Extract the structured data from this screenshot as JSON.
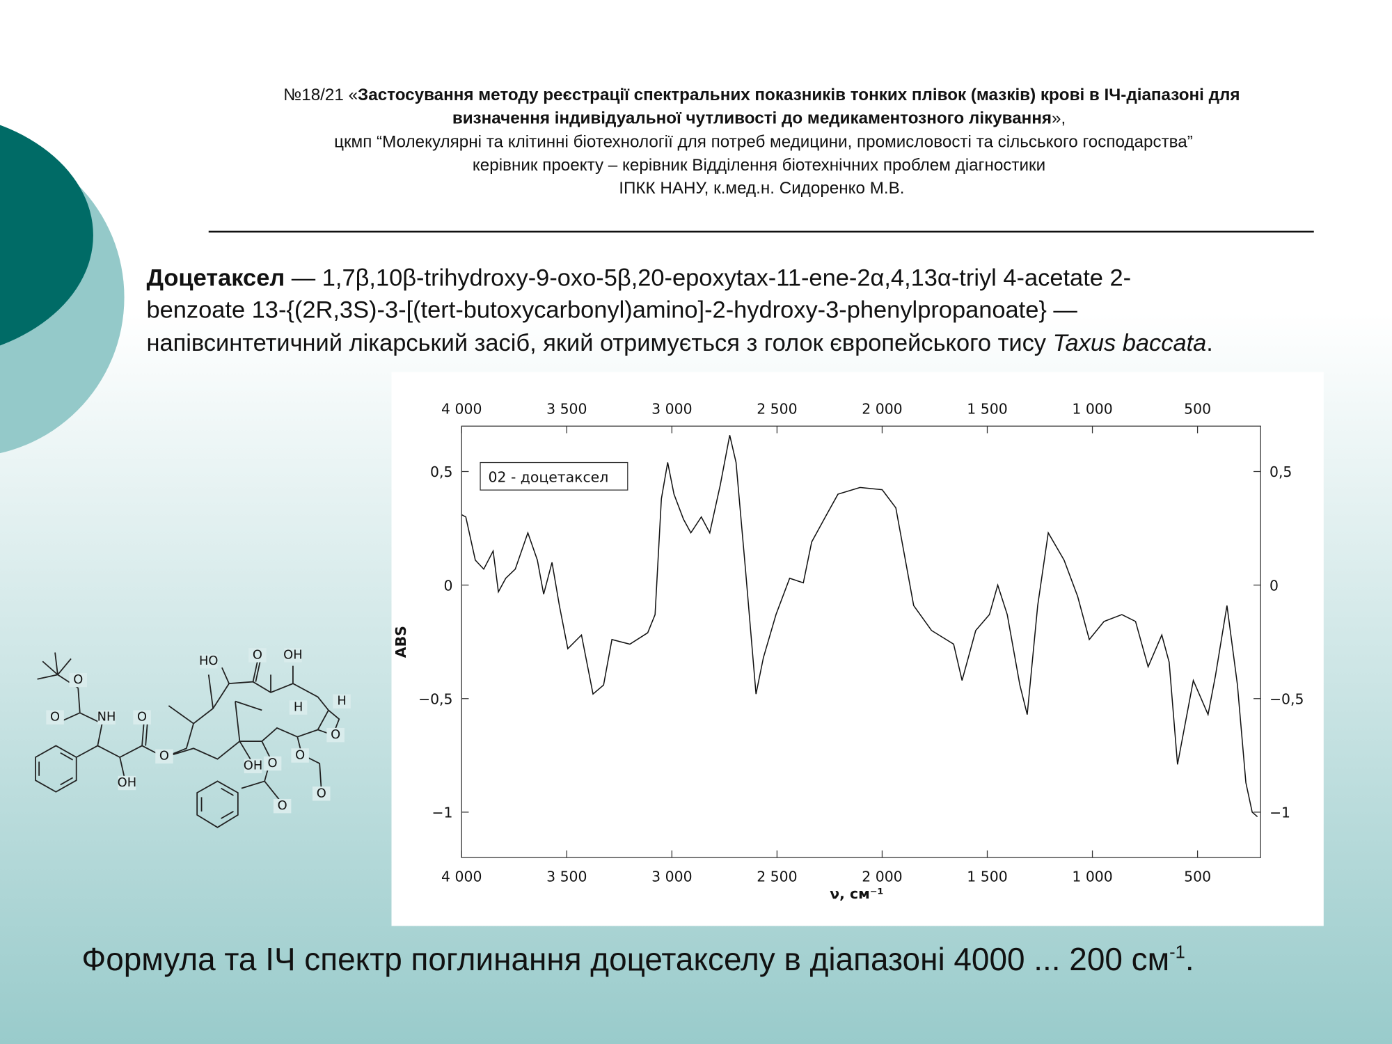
{
  "header": {
    "title_prefix": "№18/21 «",
    "title_bold_1": "Застосування методу реєстрації спектральних показників тонких плівок (мазків) крові в ІЧ-діапазоні для",
    "title_bold_2": "визначення індивідуальної чутливості до медикаментозного лікування",
    "title_suffix": "»,",
    "line_3": "цкмп “Молекулярні та клітинні біотехнології для потреб медицини, промисловості та сільського господарства”",
    "line_4": "керівник проекту – керівник Відділення біотехнічних проблем діагностики",
    "line_5": "ІПКК НАНУ, к.мед.н. Сидоренко М.В."
  },
  "description": {
    "term": "Доцетаксел",
    "line_1": " — 1,7β,10β-trihydroxy-9-oxo-5β,20-epoxytax-11-ene-2α,4,13α-triyl 4-acetate 2-",
    "line_2": "benzoate 13-{(2R,3S)-3-[(tert-butoxycarbonyl)amino]-2-hydroxy-3-phenylpropanoate} —",
    "line_3": "напівсинтетичний лікарський засіб, який отримується з голок європейського тису ",
    "species": "Taxus baccata",
    "end": "."
  },
  "molecule": {
    "labels": [
      "HO",
      "O",
      "OH",
      "H",
      "H",
      "O",
      "OH",
      "O",
      "O",
      "O",
      "O",
      "O",
      "O",
      "NH",
      "O",
      "O",
      "OH"
    ]
  },
  "chart_data": {
    "type": "line",
    "x_label": "ν, см⁻¹",
    "y_label": "ABS",
    "xlim": [
      4000,
      200
    ],
    "ylim": [
      -1.2,
      0.7
    ],
    "xticks": [
      {
        "value": 4000,
        "label": "4 000"
      },
      {
        "value": 3500,
        "label": "3 500"
      },
      {
        "value": 3000,
        "label": "3 000"
      },
      {
        "value": 2500,
        "label": "2 500"
      },
      {
        "value": 2000,
        "label": "2 000"
      },
      {
        "value": 1500,
        "label": "1 500"
      },
      {
        "value": 1000,
        "label": "1 000"
      },
      500
    ],
    "yticks": [
      {
        "value": 0.5,
        "label": "0,5"
      },
      0,
      {
        "value": -0.5,
        "label": "−0,5"
      },
      {
        "value": -1,
        "label": "−1"
      }
    ],
    "x": [
      4000,
      3980,
      3935,
      3895,
      3850,
      3825,
      3790,
      3745,
      3685,
      3640,
      3610,
      3570,
      3535,
      3495,
      3430,
      3375,
      3325,
      3285,
      3200,
      3115,
      3080,
      3050,
      3020,
      2990,
      2945,
      2910,
      2860,
      2820,
      2770,
      2725,
      2695,
      2650,
      2600,
      2565,
      2505,
      2440,
      2375,
      2335,
      2270,
      2210,
      2105,
      2000,
      1935,
      1850,
      1765,
      1660,
      1620,
      1555,
      1490,
      1450,
      1405,
      1345,
      1310,
      1260,
      1210,
      1135,
      1070,
      1015,
      945,
      860,
      795,
      735,
      670,
      635,
      595,
      520,
      450,
      415,
      360,
      310,
      270,
      240,
      215
    ],
    "series": [
      {
        "name": "02 - доцетаксел",
        "color": "#111111",
        "values": [
          0.31,
          0.3,
          0.11,
          0.07,
          0.15,
          -0.03,
          0.03,
          0.07,
          0.23,
          0.11,
          -0.04,
          0.1,
          -0.09,
          -0.28,
          -0.22,
          -0.48,
          -0.44,
          -0.24,
          -0.26,
          -0.21,
          -0.13,
          0.38,
          0.54,
          0.4,
          0.29,
          0.23,
          0.3,
          0.23,
          0.44,
          0.66,
          0.54,
          0.07,
          -0.48,
          -0.32,
          -0.13,
          0.03,
          0.01,
          0.19,
          0.3,
          0.4,
          0.43,
          0.42,
          0.34,
          -0.09,
          -0.2,
          -0.26,
          -0.42,
          -0.2,
          -0.13,
          0.0,
          -0.13,
          -0.44,
          -0.57,
          -0.09,
          0.23,
          0.11,
          -0.05,
          -0.24,
          -0.16,
          -0.13,
          -0.16,
          -0.36,
          -0.22,
          -0.34,
          -0.79,
          -0.42,
          -0.57,
          -0.4,
          -0.09,
          -0.44,
          -0.87,
          -1.0,
          -1.02
        ]
      }
    ]
  },
  "caption": {
    "text": "Формула та ІЧ спектр поглинання доцетакселу в діапазоні 4000 ... 200 см",
    "sup": "-1",
    "end": "."
  }
}
